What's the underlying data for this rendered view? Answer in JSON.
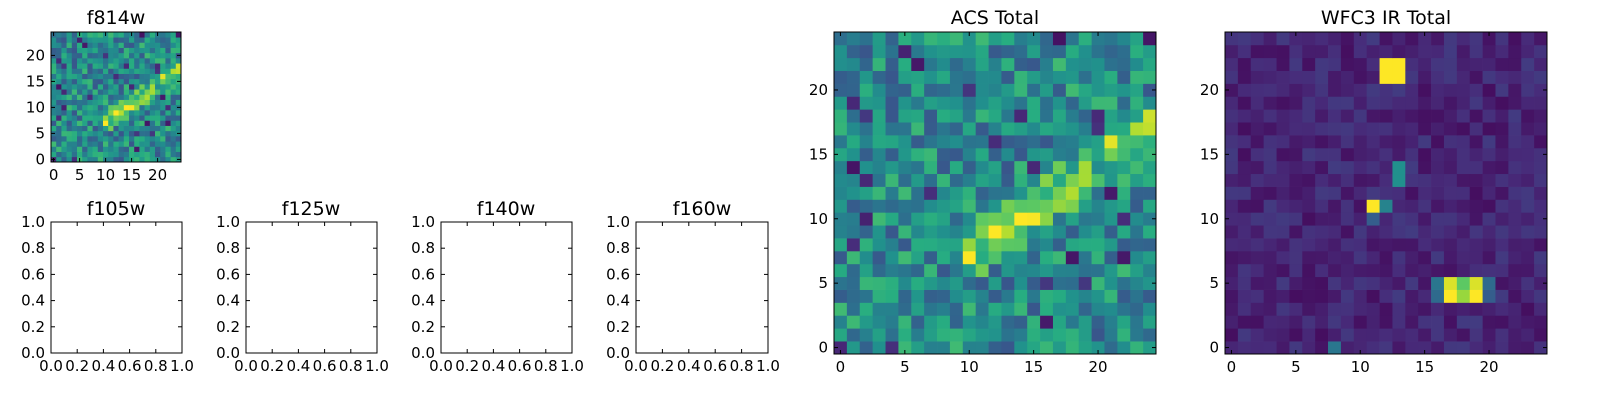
{
  "chart_data": [
    {
      "type": "heatmap",
      "title": "f814w",
      "grid_size": 25,
      "xticks": [
        "0",
        "5",
        "10",
        "15",
        "20"
      ],
      "yticks": [
        "0",
        "5",
        "10",
        "15",
        "20"
      ],
      "xlim": [
        -0.5,
        24.5
      ],
      "ylim": [
        -0.5,
        24.5
      ],
      "colormap": "viridis",
      "feature": "noisy background with bright diagonal streak from (11,8) to (24,17)"
    },
    {
      "type": "empty",
      "title": "f105w",
      "xticks": [
        "0.0",
        "0.2",
        "0.4",
        "0.6",
        "0.8",
        "1.0"
      ],
      "yticks": [
        "0.0",
        "0.2",
        "0.4",
        "0.6",
        "0.8",
        "1.0"
      ],
      "xlim": [
        0,
        1
      ],
      "ylim": [
        0,
        1
      ]
    },
    {
      "type": "empty",
      "title": "f125w",
      "xticks": [
        "0.0",
        "0.2",
        "0.4",
        "0.6",
        "0.8",
        "1.0"
      ],
      "yticks": [
        "0.0",
        "0.2",
        "0.4",
        "0.6",
        "0.8",
        "1.0"
      ],
      "xlim": [
        0,
        1
      ],
      "ylim": [
        0,
        1
      ]
    },
    {
      "type": "empty",
      "title": "f140w",
      "xticks": [
        "0.0",
        "0.2",
        "0.4",
        "0.6",
        "0.8",
        "1.0"
      ],
      "yticks": [
        "0.0",
        "0.2",
        "0.4",
        "0.6",
        "0.8",
        "1.0"
      ],
      "xlim": [
        0,
        1
      ],
      "ylim": [
        0,
        1
      ]
    },
    {
      "type": "empty",
      "title": "f160w",
      "xticks": [
        "0.0",
        "0.2",
        "0.4",
        "0.6",
        "0.8",
        "1.0"
      ],
      "yticks": [
        "0.0",
        "0.2",
        "0.4",
        "0.6",
        "0.8",
        "1.0"
      ],
      "xlim": [
        0,
        1
      ],
      "ylim": [
        0,
        1
      ]
    },
    {
      "type": "heatmap",
      "title": "ACS Total",
      "grid_size": 25,
      "xticks": [
        "0",
        "5",
        "10",
        "15",
        "20"
      ],
      "yticks": [
        "0",
        "5",
        "10",
        "15",
        "20"
      ],
      "xlim": [
        -0.5,
        24.5
      ],
      "ylim": [
        -0.5,
        24.5
      ],
      "colormap": "viridis",
      "feature": "noisy background with bright diagonal streak from (11,8) to (24,17)"
    },
    {
      "type": "heatmap",
      "title": "WFC3 IR Total",
      "grid_size": 25,
      "xticks": [
        "0",
        "5",
        "10",
        "15",
        "20"
      ],
      "yticks": [
        "0",
        "5",
        "10",
        "15",
        "20"
      ],
      "xlim": [
        -0.5,
        24.5
      ],
      "ylim": [
        -0.5,
        24.5
      ],
      "colormap": "viridis",
      "feature": "dark background with bright sources near (12,21.5), (13,13.5), (11.5,11), (18,5)",
      "bright_pixels": [
        {
          "x": 12,
          "y": 21,
          "v": 1.0
        },
        {
          "x": 13,
          "y": 21,
          "v": 1.0
        },
        {
          "x": 12,
          "y": 22,
          "v": 1.0
        },
        {
          "x": 13,
          "y": 22,
          "v": 1.0
        },
        {
          "x": 13,
          "y": 13,
          "v": 0.5
        },
        {
          "x": 13,
          "y": 14,
          "v": 0.5
        },
        {
          "x": 11,
          "y": 11,
          "v": 1.0
        },
        {
          "x": 12,
          "y": 11,
          "v": 0.45
        },
        {
          "x": 11,
          "y": 10,
          "v": 0.3
        },
        {
          "x": 17,
          "y": 5,
          "v": 0.95
        },
        {
          "x": 18,
          "y": 5,
          "v": 0.75
        },
        {
          "x": 19,
          "y": 5,
          "v": 0.95
        },
        {
          "x": 17,
          "y": 4,
          "v": 1.0
        },
        {
          "x": 18,
          "y": 4,
          "v": 0.85
        },
        {
          "x": 19,
          "y": 4,
          "v": 1.0
        },
        {
          "x": 16,
          "y": 4,
          "v": 0.35
        },
        {
          "x": 16,
          "y": 5,
          "v": 0.4
        },
        {
          "x": 20,
          "y": 4,
          "v": 0.3
        },
        {
          "x": 20,
          "y": 5,
          "v": 0.35
        },
        {
          "x": 8,
          "y": 0,
          "v": 0.4
        }
      ]
    }
  ]
}
